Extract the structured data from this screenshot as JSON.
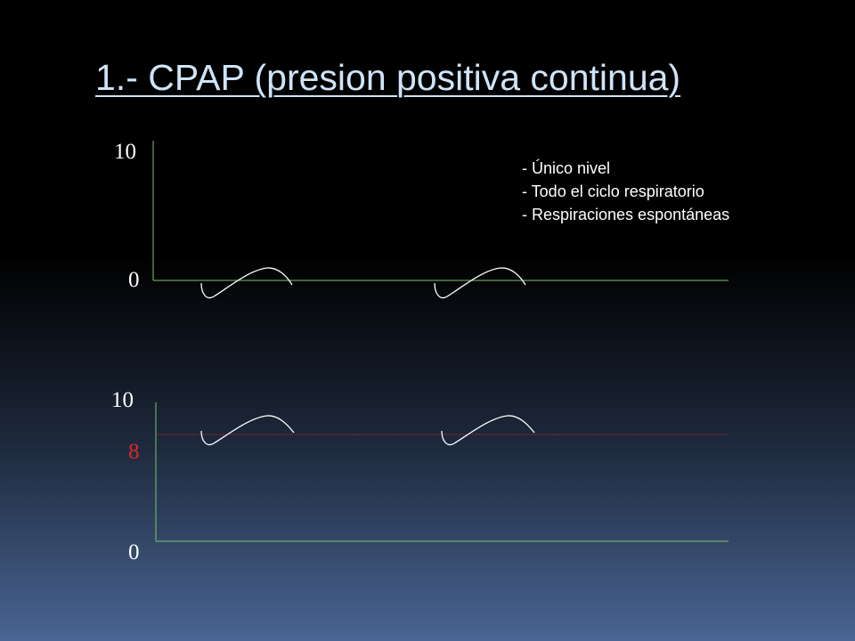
{
  "slide": {
    "title": "1.- CPAP (presion positiva continua)"
  },
  "notes": [
    "- Único nivel",
    "- Todo el ciclo respiratorio",
    "- Respiraciones espontáneas"
  ],
  "top_chart": {
    "y_labels": {
      "max": "10",
      "min": "0"
    },
    "axis_color": "#7cc36b",
    "wave_color": "#ffffff",
    "breaths": 2
  },
  "bottom_chart": {
    "y_labels": {
      "max": "10",
      "baseline": "8",
      "min": "0"
    },
    "axis_color": "#7cc36b",
    "baseline_color": "#e0262b",
    "wave_color": "#ffffff",
    "breaths": 2
  }
}
